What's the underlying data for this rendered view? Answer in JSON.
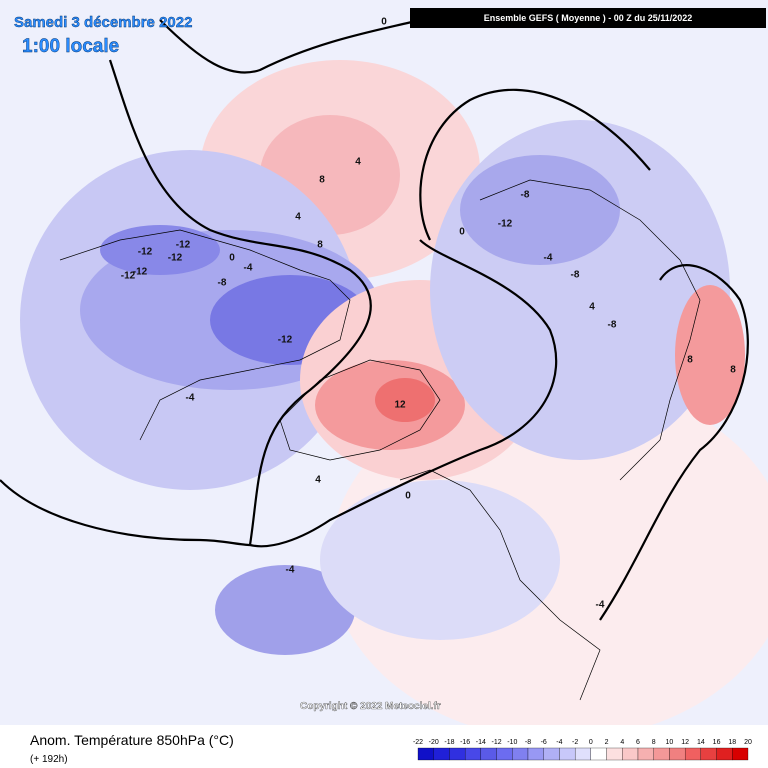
{
  "header": {
    "date": "Samedi 3 décembre 2022",
    "time": "1:00 locale",
    "model": "Ensemble GEFS ( Moyenne )  -  00 Z du 25/11/2022"
  },
  "footer": {
    "title": "Anom. Température 850hPa (°C)",
    "lead": "(+ 192h)",
    "copyright": "Copyright © 2022 Meteociel.fr"
  },
  "legend": {
    "labels": [
      "-22",
      "-20",
      "-18",
      "-16",
      "-14",
      "-12",
      "-10",
      "-8",
      "-6",
      "-4",
      "-2",
      "0",
      "2",
      "4",
      "6",
      "8",
      "10",
      "12",
      "14",
      "16",
      "18",
      "20"
    ],
    "colors": [
      "#1010c8",
      "#2020d8",
      "#3030e0",
      "#4848e8",
      "#5a5ae8",
      "#6c6cf0",
      "#8080f0",
      "#9898f4",
      "#b0b0f6",
      "#c8c8fa",
      "#e0e0fc",
      "#ffffff",
      "#fce0e0",
      "#fac8c8",
      "#f6b0b0",
      "#f49898",
      "#f08080",
      "#f06060",
      "#e84040",
      "#e02020",
      "#d80000"
    ]
  },
  "map_labels": [
    "-12",
    "-12",
    "-12",
    "-12",
    "-12",
    "-12",
    "-8",
    "-4",
    "-4",
    "-12",
    "-8",
    "-8",
    "-4",
    "-8",
    "8",
    "8",
    "4",
    "4",
    "12",
    "4",
    "0",
    "0",
    "-4",
    "4",
    "8",
    "8",
    "0",
    "0",
    "-4"
  ]
}
